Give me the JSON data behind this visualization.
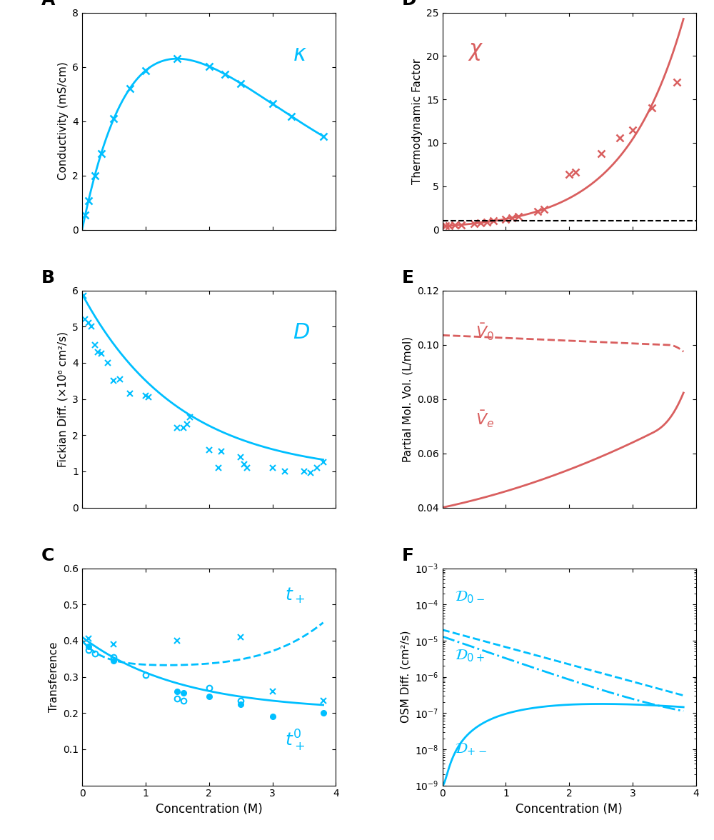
{
  "cyan_color": "#00BFFF",
  "red_color": "#D95F5F",
  "panel_label_fontsize": 18,
  "A_ylabel": "Conductivity (mS/cm)",
  "A_ylim": [
    0,
    8
  ],
  "A_yticks": [
    0,
    2,
    4,
    6,
    8
  ],
  "B_ylabel": "Fickian Diff. (×10⁶ cm²/s)",
  "B_ylim": [
    0,
    6
  ],
  "B_yticks": [
    0,
    1,
    2,
    3,
    4,
    5,
    6
  ],
  "C_ylabel": "Transference",
  "C_ylim": [
    0,
    0.6
  ],
  "C_yticks": [
    0.1,
    0.2,
    0.3,
    0.4,
    0.5,
    0.6
  ],
  "D_ylabel": "Thermodynamic Factor",
  "D_ylim": [
    0,
    25
  ],
  "D_yticks": [
    0,
    5,
    10,
    15,
    20,
    25
  ],
  "E_ylabel": "Partial Mol. Vol. (L/mol)",
  "E_ylim": [
    0.04,
    0.12
  ],
  "E_yticks": [
    0.04,
    0.06,
    0.08,
    0.1,
    0.12
  ],
  "F_ylabel": "OSM Diff. (cm²/s)",
  "xlabel": "Concentration (M)",
  "xlim": [
    0,
    4
  ],
  "xticks": [
    0,
    1,
    2,
    3,
    4
  ]
}
